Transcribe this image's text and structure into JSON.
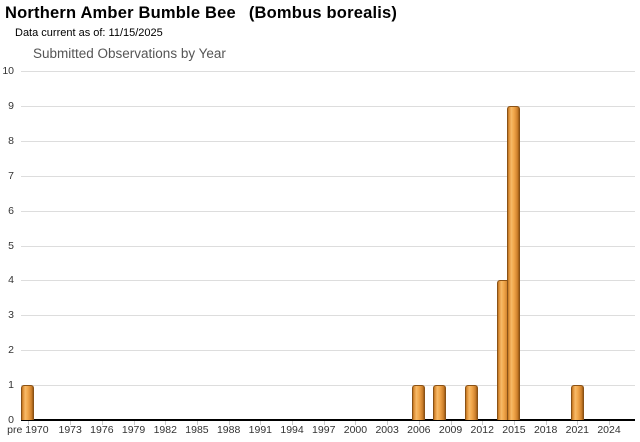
{
  "header": {
    "title_common": "Northern Amber Bumble Bee",
    "title_scientific": "(Bombus borealis)",
    "data_current": "Data current as of: 11/15/2025"
  },
  "chart_data": {
    "type": "bar",
    "title": "Submitted Observations by Year",
    "legend": false,
    "grid": true,
    "x_axis": {
      "first_category": "pre 1970",
      "year_start": 1970,
      "year_end": 2025,
      "tick_labels": [
        "pre 1970",
        "1973",
        "1976",
        "1979",
        "1982",
        "1985",
        "1988",
        "1991",
        "1994",
        "1997",
        "2000",
        "2003",
        "2006",
        "2009",
        "2012",
        "2015",
        "2018",
        "2021",
        "2024"
      ]
    },
    "y_axis": {
      "min": 0,
      "max": 10,
      "tick_interval": 1,
      "tick_labels": [
        "0",
        "1",
        "2",
        "3",
        "4",
        "5",
        "6",
        "7",
        "8",
        "9",
        "10"
      ]
    },
    "series": [
      {
        "name": "Submitted Observations",
        "points": [
          {
            "category": "pre 1970",
            "value": 1
          },
          {
            "category": "2006",
            "value": 1
          },
          {
            "category": "2008",
            "value": 1
          },
          {
            "category": "2011",
            "value": 1
          },
          {
            "category": "2014",
            "value": 4
          },
          {
            "category": "2015",
            "value": 9
          },
          {
            "category": "2021",
            "value": 1
          }
        ]
      }
    ],
    "colors": {
      "bar_fill_highlight": "#f7ba68",
      "bar_fill_mid": "#f2a84c",
      "bar_fill_edge": "#9a5a14",
      "bar_border": "#8a5216",
      "gridline": "#dddddd",
      "axis_line": "#000000",
      "chart_title_text": "#555555",
      "axis_label_text": "#333333"
    }
  }
}
